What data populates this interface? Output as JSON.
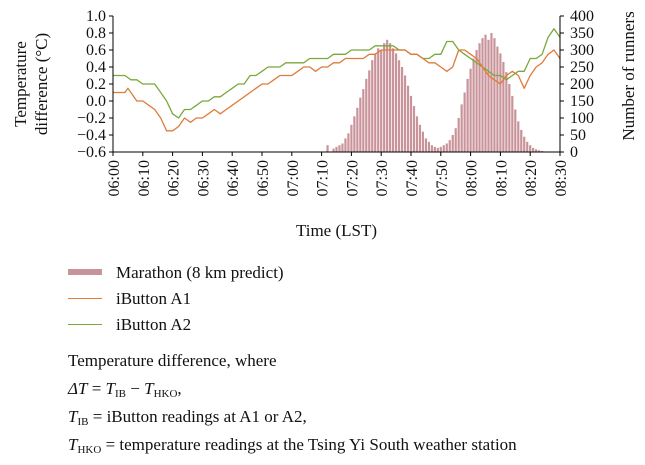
{
  "chart_data": {
    "type": "bar+line",
    "xlabel": "Time (LST)",
    "ylabel_left_line1": "Temperature",
    "ylabel_left_line2": "difference (°C)",
    "ylabel_right": "Number of runners",
    "x_tick_labels": [
      "06:00",
      "06:10",
      "06:20",
      "06:30",
      "06:40",
      "06:50",
      "07:00",
      "07:10",
      "07:20",
      "07:30",
      "07:40",
      "07:50",
      "08:00",
      "08:10",
      "08:20",
      "08:30"
    ],
    "x_range_minutes": [
      0,
      150
    ],
    "y_left_ticks": [
      "1.0",
      "0.8",
      "0.6",
      "0.4",
      "0.2",
      "0.0",
      "−0.2",
      "−0.4",
      "−0.6"
    ],
    "y_left_range": [
      -0.6,
      1.0
    ],
    "y_right_ticks": [
      "400",
      "350",
      "300",
      "250",
      "200",
      "150",
      "100",
      "50",
      "0"
    ],
    "y_right_range": [
      0,
      400
    ],
    "colors": {
      "bars": "#c9939a",
      "A1": "#e07b39",
      "A2": "#7aa83a"
    },
    "bars": {
      "name": "Marathon (8 km predict)",
      "x_minutes": [
        72,
        74,
        75,
        76,
        77,
        78,
        79,
        80,
        81,
        82,
        83,
        84,
        85,
        86,
        87,
        88,
        89,
        90,
        91,
        92,
        93,
        94,
        95,
        96,
        97,
        98,
        99,
        100,
        101,
        102,
        103,
        104,
        105,
        106,
        107,
        108,
        109,
        110,
        111,
        112,
        113,
        114,
        115,
        116,
        117,
        118,
        119,
        120,
        121,
        122,
        123,
        124,
        125,
        126,
        127,
        128,
        129,
        130,
        131,
        132,
        133,
        134,
        135,
        136,
        137,
        138,
        139,
        140,
        141,
        142,
        143,
        144
      ],
      "values": [
        20,
        10,
        15,
        20,
        25,
        40,
        55,
        80,
        105,
        130,
        160,
        185,
        215,
        240,
        270,
        290,
        305,
        300,
        320,
        330,
        320,
        305,
        290,
        270,
        250,
        225,
        195,
        165,
        135,
        105,
        80,
        60,
        40,
        30,
        20,
        15,
        12,
        15,
        20,
        25,
        35,
        50,
        70,
        100,
        140,
        175,
        215,
        245,
        275,
        300,
        320,
        335,
        345,
        330,
        350,
        335,
        310,
        290,
        265,
        235,
        200,
        165,
        125,
        90,
        65,
        45,
        30,
        20,
        12,
        8,
        5,
        3
      ]
    },
    "series": [
      {
        "name": "iButton A1",
        "x_minutes": [
          0,
          2,
          4,
          5,
          6,
          8,
          10,
          12,
          14,
          16,
          18,
          20,
          22,
          24,
          26,
          28,
          30,
          32,
          34,
          36,
          38,
          40,
          42,
          44,
          46,
          48,
          50,
          52,
          54,
          56,
          58,
          60,
          62,
          64,
          66,
          68,
          70,
          72,
          74,
          76,
          78,
          80,
          82,
          84,
          86,
          88,
          90,
          92,
          94,
          96,
          98,
          100,
          102,
          104,
          106,
          108,
          110,
          112,
          114,
          116,
          118,
          120,
          122,
          124,
          126,
          128,
          130,
          132,
          134,
          136,
          138,
          140,
          142,
          144,
          146,
          148,
          150
        ],
        "values": [
          0.1,
          0.1,
          0.1,
          0.15,
          0.1,
          0.0,
          0.0,
          -0.05,
          -0.1,
          -0.2,
          -0.35,
          -0.35,
          -0.3,
          -0.2,
          -0.25,
          -0.2,
          -0.2,
          -0.15,
          -0.1,
          -0.15,
          -0.1,
          -0.05,
          0.0,
          0.05,
          0.1,
          0.15,
          0.2,
          0.2,
          0.25,
          0.3,
          0.3,
          0.3,
          0.35,
          0.4,
          0.4,
          0.35,
          0.4,
          0.4,
          0.45,
          0.45,
          0.5,
          0.5,
          0.5,
          0.5,
          0.55,
          0.55,
          0.6,
          0.6,
          0.6,
          0.6,
          0.6,
          0.55,
          0.55,
          0.5,
          0.45,
          0.45,
          0.4,
          0.35,
          0.4,
          0.6,
          0.6,
          0.55,
          0.5,
          0.4,
          0.3,
          0.25,
          0.2,
          0.3,
          0.35,
          0.3,
          0.15,
          0.3,
          0.4,
          0.45,
          0.55,
          0.6,
          0.5
        ]
      },
      {
        "name": "iButton A2",
        "x_minutes": [
          0,
          2,
          4,
          6,
          8,
          10,
          12,
          14,
          16,
          18,
          20,
          22,
          24,
          26,
          28,
          30,
          32,
          34,
          36,
          38,
          40,
          42,
          44,
          46,
          48,
          50,
          52,
          54,
          56,
          58,
          60,
          62,
          64,
          66,
          68,
          70,
          72,
          74,
          76,
          78,
          80,
          82,
          84,
          86,
          88,
          90,
          92,
          94,
          96,
          98,
          100,
          102,
          104,
          106,
          108,
          110,
          112,
          114,
          116,
          118,
          120,
          122,
          124,
          126,
          128,
          130,
          132,
          134,
          136,
          138,
          140,
          142,
          144,
          146,
          148,
          150
        ],
        "values": [
          0.3,
          0.3,
          0.3,
          0.25,
          0.25,
          0.2,
          0.2,
          0.2,
          0.1,
          0.0,
          -0.15,
          -0.2,
          -0.1,
          -0.1,
          -0.05,
          0.0,
          0.0,
          0.05,
          0.05,
          0.1,
          0.15,
          0.2,
          0.2,
          0.3,
          0.3,
          0.35,
          0.4,
          0.4,
          0.4,
          0.45,
          0.45,
          0.45,
          0.45,
          0.5,
          0.5,
          0.5,
          0.5,
          0.55,
          0.55,
          0.55,
          0.6,
          0.6,
          0.6,
          0.6,
          0.65,
          0.65,
          0.65,
          0.65,
          0.6,
          0.6,
          0.55,
          0.55,
          0.5,
          0.5,
          0.55,
          0.55,
          0.7,
          0.7,
          0.6,
          0.55,
          0.5,
          0.45,
          0.4,
          0.35,
          0.3,
          0.3,
          0.25,
          0.3,
          0.35,
          0.35,
          0.5,
          0.5,
          0.55,
          0.75,
          0.85,
          0.75
        ]
      }
    ]
  },
  "legend": [
    {
      "label": "Marathon (8 km predict)",
      "kind": "bar",
      "color": "#c9939a"
    },
    {
      "label": "iButton A1",
      "kind": "line",
      "color": "#e07b39"
    },
    {
      "label": "iButton A2",
      "kind": "line",
      "color": "#7aa83a"
    }
  ],
  "notes": {
    "line1": "Temperature difference, where",
    "delta_T": "ΔT",
    "T": "T",
    "IB": "IB",
    "HKO": "HKO",
    "def_ib": "iButton readings at A1 or A2,",
    "def_hko": "temperature readings at the Tsing Yi South weather station"
  }
}
